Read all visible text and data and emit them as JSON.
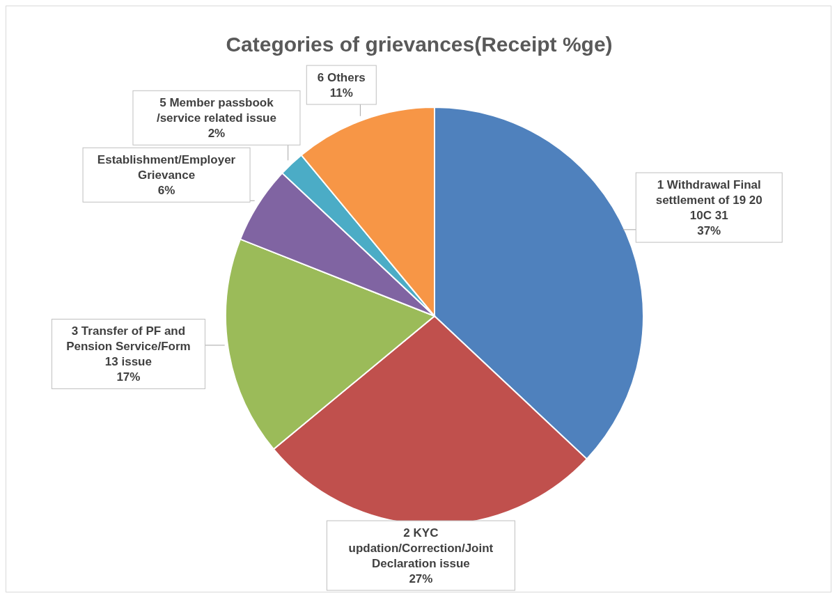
{
  "chart_data": {
    "type": "pie",
    "title": "Categories of grievances(Receipt %ge)",
    "categories": [
      "1 Withdrawal Final settlement of 19 20 10C 31",
      "2 KYC updation/Correction/Joint Declaration issue",
      "3 Transfer of PF and Pension Service/Form 13 issue",
      "Establishment/Employer Grievance",
      "5 Member passbook /service related issue",
      "6 Others"
    ],
    "values": [
      37,
      27,
      17,
      6,
      2,
      11
    ],
    "value_labels": [
      "37%",
      "27%",
      "17%",
      "6%",
      "2%",
      "11%"
    ],
    "colors": [
      "#4f81bd",
      "#c0504d",
      "#9bbb59",
      "#8064a2",
      "#4bacc6",
      "#f79646"
    ]
  }
}
